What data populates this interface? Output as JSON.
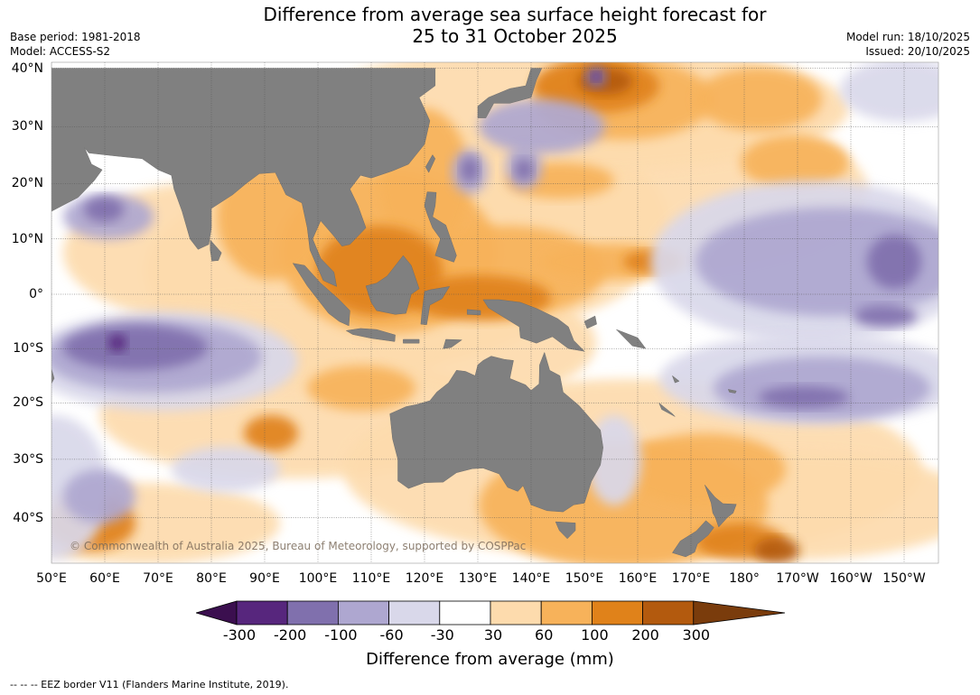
{
  "title": {
    "line1": "Difference from average sea surface height forecast for",
    "line2": "25 to 31 October 2025"
  },
  "meta": {
    "base_period": "Base period: 1981-2018",
    "model": "Model: ACCESS-S2",
    "model_run": "Model run: 18/10/2025",
    "issued": "Issued: 20/10/2025"
  },
  "map": {
    "lat_labels": [
      "40°N",
      "30°N",
      "20°N",
      "10°N",
      "0°",
      "10°S",
      "20°S",
      "30°S",
      "40°S"
    ],
    "lon_labels": [
      "50°E",
      "60°E",
      "70°E",
      "80°E",
      "90°E",
      "100°E",
      "110°E",
      "120°E",
      "130°E",
      "140°E",
      "150°E",
      "160°E",
      "170°E",
      "180°",
      "170°W",
      "160°W",
      "150°W"
    ],
    "copyright": "© Commonwealth of Australia 2025, Bureau of Meteorology, supported by COSPPac",
    "colors": {
      "land": "#808080",
      "ocean_neutral": "#ffffff",
      "grid": "#555555"
    }
  },
  "colorbar": {
    "ticks": [
      "-300",
      "-200",
      "-100",
      "-60",
      "-30",
      "30",
      "60",
      "100",
      "200",
      "300"
    ],
    "colors": [
      "#3b0f4f",
      "#57267d",
      "#8070ad",
      "#aea7d0",
      "#d9d8ea",
      "#ffffff",
      "#fddbad",
      "#f7b25a",
      "#e0821a",
      "#b35a0e",
      "#7a3c0c"
    ],
    "label": "Difference from average (mm)"
  },
  "footnote": "--  --  -- EEZ border V11 (Flanders Marine Institute, 2019)."
}
